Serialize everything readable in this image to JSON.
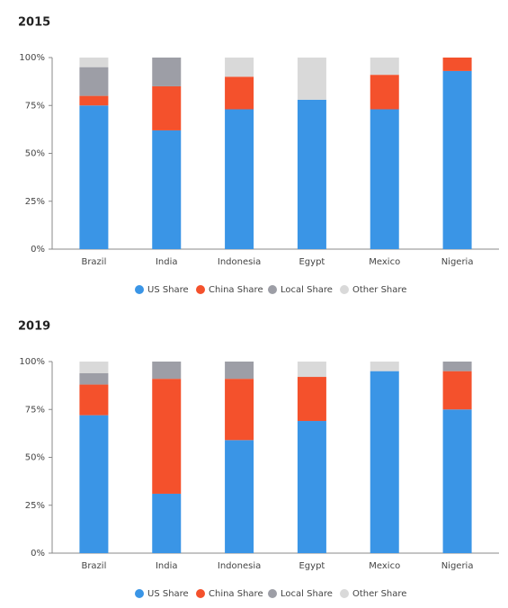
{
  "chart_data": [
    {
      "type": "bar",
      "stacked": true,
      "title": "2015",
      "categories": [
        "Brazil",
        "India",
        "Indonesia",
        "Egypt",
        "Mexico",
        "Nigeria"
      ],
      "series": [
        {
          "name": "US Share",
          "color": "#3a95e6",
          "values": [
            75,
            62,
            73,
            78,
            73,
            93
          ]
        },
        {
          "name": "China Share",
          "color": "#f4512c",
          "values": [
            5,
            23,
            17,
            0,
            18,
            7
          ]
        },
        {
          "name": "Local Share",
          "color": "#9d9ea6",
          "values": [
            15,
            15,
            0,
            0,
            0,
            0
          ]
        },
        {
          "name": "Other Share",
          "color": "#d9d9d9",
          "values": [
            5,
            0,
            10,
            22,
            9,
            0
          ]
        }
      ],
      "ylim": [
        0,
        100
      ],
      "yticks": [
        {
          "value": 0,
          "label": "0%"
        },
        {
          "value": 25,
          "label": "25%"
        },
        {
          "value": 50,
          "label": "50%"
        },
        {
          "value": 75,
          "label": "75%"
        },
        {
          "value": 100,
          "label": "100%"
        }
      ]
    },
    {
      "type": "bar",
      "stacked": true,
      "title": "2019",
      "categories": [
        "Brazil",
        "India",
        "Indonesia",
        "Egypt",
        "Mexico",
        "Nigeria"
      ],
      "series": [
        {
          "name": "US Share",
          "color": "#3a95e6",
          "values": [
            72,
            31,
            59,
            69,
            95,
            75
          ]
        },
        {
          "name": "China Share",
          "color": "#f4512c",
          "values": [
            16,
            60,
            32,
            23,
            0,
            20
          ]
        },
        {
          "name": "Local Share",
          "color": "#9d9ea6",
          "values": [
            6,
            9,
            9,
            0,
            0,
            5
          ]
        },
        {
          "name": "Other Share",
          "color": "#d9d9d9",
          "values": [
            6,
            0,
            0,
            8,
            5,
            0
          ]
        }
      ],
      "ylim": [
        0,
        100
      ],
      "yticks": [
        {
          "value": 0,
          "label": "0%"
        },
        {
          "value": 25,
          "label": "25%"
        },
        {
          "value": 50,
          "label": "50%"
        },
        {
          "value": 75,
          "label": "75%"
        },
        {
          "value": 100,
          "label": "100%"
        }
      ]
    }
  ]
}
